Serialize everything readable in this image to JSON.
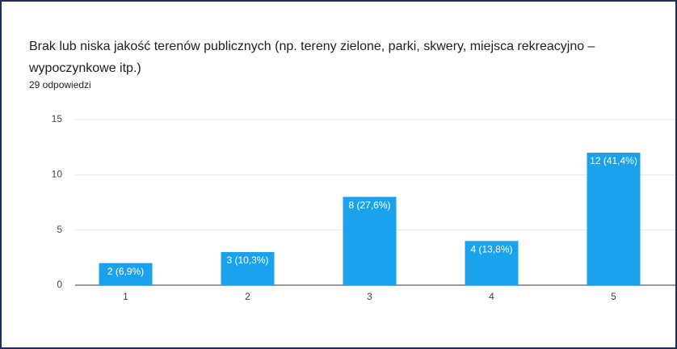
{
  "chart_data": {
    "type": "bar",
    "title": "Brak lub niska jakość terenów publicznych (np. tereny zielone, parki, skwery, miejsca rekreacyjno – wypoczynkowe itp.)",
    "subtitle": "29 odpowiedzi",
    "categories": [
      "1",
      "2",
      "3",
      "4",
      "5"
    ],
    "values": [
      2,
      3,
      8,
      4,
      12
    ],
    "value_labels": [
      "2 (6,9%)",
      "3 (10,3%)",
      "8 (27,6%)",
      "4 (13,8%)",
      "12 (41,4%)"
    ],
    "color": "#1aa3ec",
    "ylim": [
      0,
      15
    ],
    "yticks": [
      0,
      5,
      10,
      15
    ],
    "grid": true
  }
}
